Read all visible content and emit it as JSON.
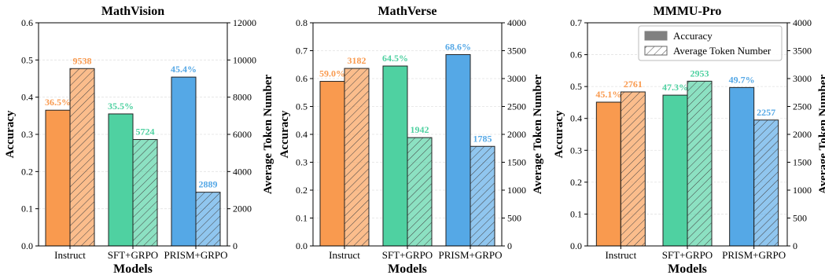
{
  "colors": {
    "instruct": "#f99a4f",
    "sft_grpo": "#4fd1a1",
    "prism_grpo": "#55a8e6",
    "hatch": "#444444",
    "grid": "#e2e2e2"
  },
  "legend": {
    "accuracy": "Accuracy",
    "tokens": "Average Token Number"
  },
  "chart_data": [
    {
      "type": "bar",
      "title": "MathVision",
      "xlabel": "Models",
      "ylabel": "Accuracy",
      "y2label": "Average Token Number",
      "categories": [
        "Instruct",
        "SFT+GRPO",
        "PRISM+GRPO"
      ],
      "ylim": [
        0,
        0.6
      ],
      "yticks": [
        "0.0",
        "0.1",
        "0.2",
        "0.3",
        "0.4",
        "0.5",
        "0.6"
      ],
      "y2lim": [
        0,
        12000
      ],
      "y2ticks": [
        "0",
        "2000",
        "4000",
        "6000",
        "8000",
        "10000",
        "12000"
      ],
      "series": [
        {
          "name": "Accuracy",
          "values": [
            0.365,
            0.355,
            0.454
          ],
          "labels": [
            "36.5%",
            "35.5%",
            "45.4%"
          ],
          "axis": "left"
        },
        {
          "name": "Average Token Number",
          "values": [
            9538,
            5724,
            2889
          ],
          "labels": [
            "9538",
            "5724",
            "2889"
          ],
          "axis": "right"
        }
      ]
    },
    {
      "type": "bar",
      "title": "MathVerse",
      "xlabel": "Models",
      "ylabel": "Accuracy",
      "y2label": "Average Token Number",
      "categories": [
        "Instruct",
        "SFT+GRPO",
        "PRISM+GRPO"
      ],
      "ylim": [
        0,
        0.8
      ],
      "yticks": [
        "0.0",
        "0.1",
        "0.2",
        "0.3",
        "0.4",
        "0.5",
        "0.6",
        "0.7",
        "0.8"
      ],
      "y2lim": [
        0,
        4000
      ],
      "y2ticks": [
        "0",
        "500",
        "1000",
        "1500",
        "2000",
        "2500",
        "3000",
        "3500",
        "4000"
      ],
      "series": [
        {
          "name": "Accuracy",
          "values": [
            0.59,
            0.645,
            0.686
          ],
          "labels": [
            "59.0%",
            "64.5%",
            "68.6%"
          ],
          "axis": "left"
        },
        {
          "name": "Average Token Number",
          "values": [
            3182,
            1942,
            1785
          ],
          "labels": [
            "3182",
            "1942",
            "1785"
          ],
          "axis": "right"
        }
      ]
    },
    {
      "type": "bar",
      "title": "MMMU-Pro",
      "xlabel": "Models",
      "ylabel": "Accuracy",
      "y2label": "Average Token Number",
      "categories": [
        "Instruct",
        "SFT+GRPO",
        "PRISM+GRPO"
      ],
      "ylim": [
        0,
        0.7
      ],
      "yticks": [
        "0.0",
        "0.1",
        "0.2",
        "0.3",
        "0.4",
        "0.5",
        "0.6",
        "0.7"
      ],
      "y2lim": [
        0,
        4000
      ],
      "y2ticks": [
        "0",
        "500",
        "1000",
        "1500",
        "2000",
        "2500",
        "3000",
        "3500",
        "4000"
      ],
      "legend": "top-right",
      "series": [
        {
          "name": "Accuracy",
          "values": [
            0.451,
            0.473,
            0.497
          ],
          "labels": [
            "45.1%",
            "47.3%",
            "49.7%"
          ],
          "axis": "left"
        },
        {
          "name": "Average Token Number",
          "values": [
            2761,
            2953,
            2257
          ],
          "labels": [
            "2761",
            "2953",
            "2257"
          ],
          "axis": "right"
        }
      ]
    }
  ]
}
